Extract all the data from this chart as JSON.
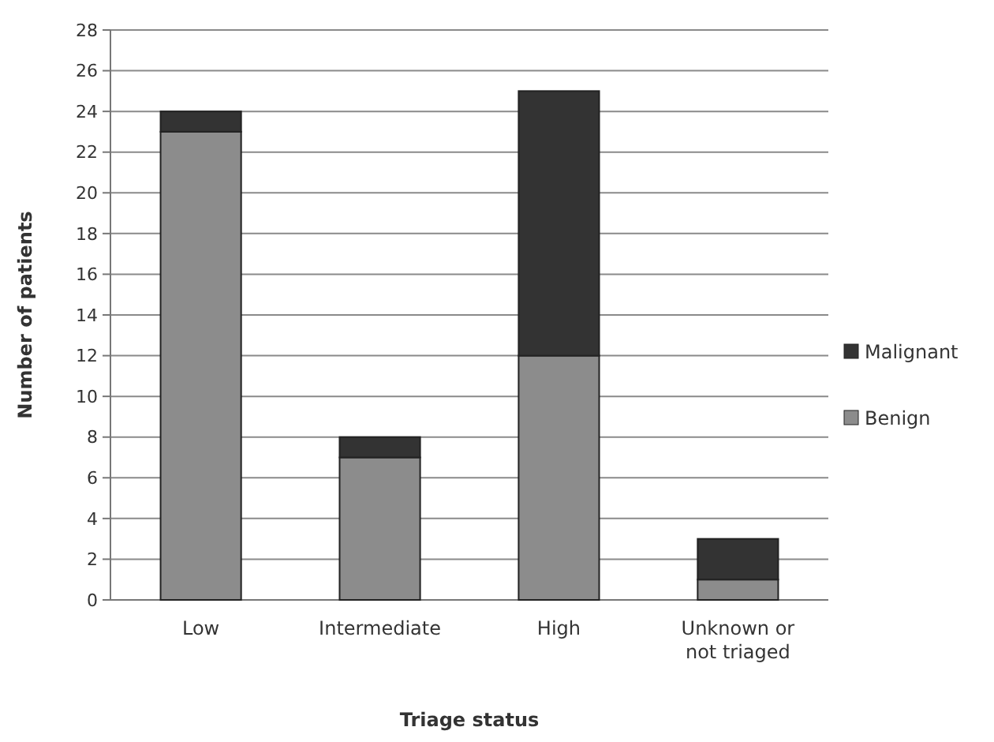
{
  "chart_data": {
    "type": "bar",
    "stacked": true,
    "xlabel": "Triage status",
    "ylabel": "Number of patients",
    "categories": [
      "Low",
      "Intermediate",
      "High",
      "Unknown or not triaged"
    ],
    "series": [
      {
        "name": "Benign",
        "color": "#8c8c8c",
        "values": [
          23,
          7,
          12,
          1
        ]
      },
      {
        "name": "Malignant",
        "color": "#333333",
        "values": [
          1,
          1,
          13,
          2
        ]
      }
    ],
    "ylim": [
      0,
      28
    ],
    "yticks": [
      0,
      2,
      4,
      6,
      8,
      10,
      12,
      14,
      16,
      18,
      20,
      22,
      24,
      26,
      28
    ],
    "grid": "y",
    "legend": "right"
  }
}
